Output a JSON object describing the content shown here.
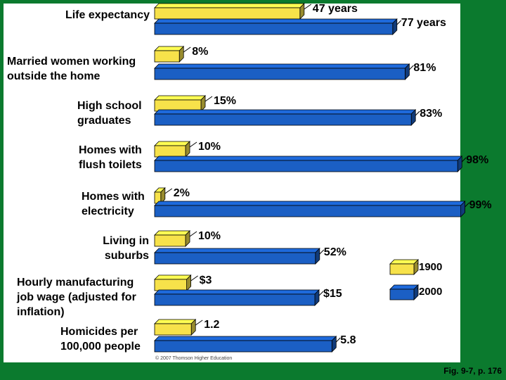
{
  "chart_data": {
    "type": "bar",
    "orientation": "horizontal",
    "categories": [
      "Life expectancy",
      "Married women working outside the home",
      "High school graduates",
      "Homes with flush toilets",
      "Homes with electricity",
      "Living in suburbs",
      "Hourly manufacturing job wage (adjusted for inflation)",
      "Homicides per 100,000 people"
    ],
    "category_lines": [
      [
        "Life expectancy"
      ],
      [
        "Married women working",
        "outside the home"
      ],
      [
        "High school",
        "graduates"
      ],
      [
        "Homes with",
        "flush toilets"
      ],
      [
        "Homes with",
        "electricity"
      ],
      [
        "Living in",
        "suburbs"
      ],
      [
        "Hourly manufacturing",
        "job wage (adjusted for",
        "inflation)"
      ],
      [
        "Homicides per",
        "100,000 people"
      ]
    ],
    "series": [
      {
        "name": "1900",
        "color": "#f7e24a",
        "values": [
          47,
          8,
          15,
          10,
          2,
          10,
          3,
          1.2
        ],
        "labels": [
          "47 years",
          "8%",
          "15%",
          "10%",
          "2%",
          "10%",
          "$3",
          "1.2"
        ]
      },
      {
        "name": "2000",
        "color": "#1b5fc4",
        "values": [
          77,
          81,
          83,
          98,
          99,
          52,
          15,
          5.8
        ],
        "labels": [
          "77 years",
          "81%",
          "83%",
          "98%",
          "99%",
          "52%",
          "$15",
          "5.8"
        ]
      }
    ],
    "legend_position": "right",
    "grid": false
  },
  "credit": "© 2007 Thomson Higher Education",
  "caption": "Fig. 9-7, p. 176"
}
